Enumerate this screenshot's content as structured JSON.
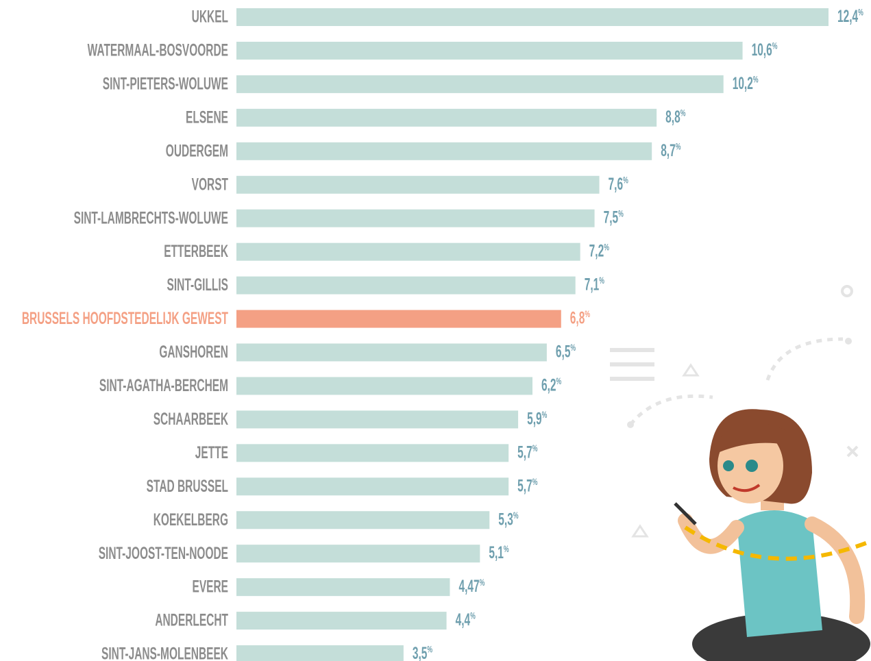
{
  "chart_data": {
    "type": "bar",
    "orientation": "horizontal",
    "categories": [
      "UKKEL",
      "WATERMAAL-BOSVOORDE",
      "SINT-PIETERS-WOLUWE",
      "ELSENE",
      "OUDERGEM",
      "VORST",
      "SINT-LAMBRECHTS-WOLUWE",
      "ETTERBEEK",
      "SINT-GILLIS",
      "BRUSSELS HOOFDSTEDELIJK GEWEST",
      "GANSHOREN",
      "SINT-AGATHA-BERCHEM",
      "SCHAARBEEK",
      "JETTE",
      "STAD BRUSSEL",
      "KOEKELBERG",
      "SINT-JOOST-TEN-NOODE",
      "EVERE",
      "ANDERLECHT",
      "SINT-JANS-MOLENBEEK"
    ],
    "values": [
      12.4,
      10.6,
      10.2,
      8.8,
      8.7,
      7.6,
      7.5,
      7.2,
      7.1,
      6.8,
      6.5,
      6.2,
      5.9,
      5.7,
      5.7,
      5.3,
      5.1,
      4.47,
      4.4,
      3.5
    ],
    "value_labels": [
      "12,4%",
      "10,6%",
      "10,2%",
      "8,8%",
      "8,7%",
      "7,6%",
      "7,5%",
      "7,2%",
      "7,1%",
      "6,8%",
      "6,5%",
      "6,2%",
      "5,9%",
      "5,7%",
      "5,7%",
      "5,3%",
      "5,1%",
      "4,47%",
      "4,4%",
      "3,5%"
    ],
    "colors": [
      "#c4ded9",
      "#c4ded9",
      "#c4ded9",
      "#c4ded9",
      "#c4ded9",
      "#c4ded9",
      "#c4ded9",
      "#c4ded9",
      "#c4ded9",
      "#f4a084",
      "#c4ded9",
      "#c4ded9",
      "#c4ded9",
      "#c4ded9",
      "#c4ded9",
      "#c4ded9",
      "#c4ded9",
      "#c4ded9",
      "#c4ded9",
      "#c4ded9"
    ],
    "label_colors": [
      "#8c8c8c",
      "#8c8c8c",
      "#8c8c8c",
      "#8c8c8c",
      "#8c8c8c",
      "#8c8c8c",
      "#8c8c8c",
      "#8c8c8c",
      "#8c8c8c",
      "#f4a084",
      "#8c8c8c",
      "#8c8c8c",
      "#8c8c8c",
      "#8c8c8c",
      "#8c8c8c",
      "#8c8c8c",
      "#8c8c8c",
      "#8c8c8c",
      "#8c8c8c",
      "#8c8c8c"
    ],
    "value_label_colors": [
      "#6f9fae",
      "#6f9fae",
      "#6f9fae",
      "#6f9fae",
      "#6f9fae",
      "#6f9fae",
      "#6f9fae",
      "#6f9fae",
      "#6f9fae",
      "#f4a084",
      "#6f9fae",
      "#6f9fae",
      "#6f9fae",
      "#6f9fae",
      "#6f9fae",
      "#6f9fae",
      "#6f9fae",
      "#6f9fae",
      "#6f9fae",
      "#6f9fae"
    ]
  }
}
